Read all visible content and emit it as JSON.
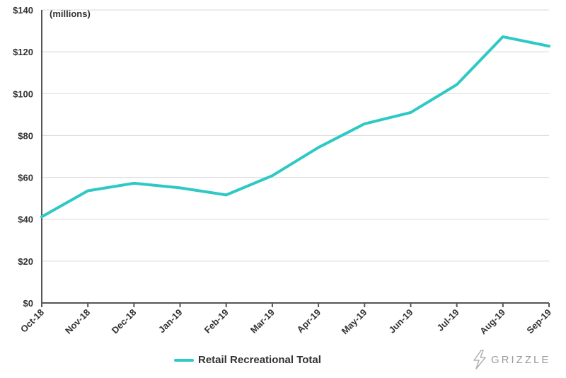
{
  "chart_data": {
    "type": "line",
    "unit_note": "(millions)",
    "categories": [
      "Oct-18",
      "Nov-18",
      "Dec-18",
      "Jan-19",
      "Feb-19",
      "Mar-19",
      "Apr-19",
      "May-19",
      "Jun-19",
      "Jul-19",
      "Aug-19",
      "Sep-19"
    ],
    "series": [
      {
        "name": "Retail Recreational Total",
        "values": [
          41.2,
          53.6,
          57.2,
          55.0,
          51.6,
          60.8,
          74.3,
          85.6,
          91.0,
          104.3,
          127.2,
          122.7
        ]
      }
    ],
    "ylim": [
      0,
      140
    ],
    "yticks": [
      0,
      20,
      40,
      60,
      80,
      100,
      120,
      140
    ],
    "ytick_labels": [
      "$0",
      "$20",
      "$40",
      "$60",
      "$80",
      "$100",
      "$120",
      "$140"
    ],
    "grid": "horizontal",
    "legend_position": "bottom",
    "colors": {
      "line": "#2ec9c5",
      "grid": "#d9d9d9",
      "axis": "#555555"
    }
  },
  "logo": {
    "text": "GRIZZLE"
  }
}
